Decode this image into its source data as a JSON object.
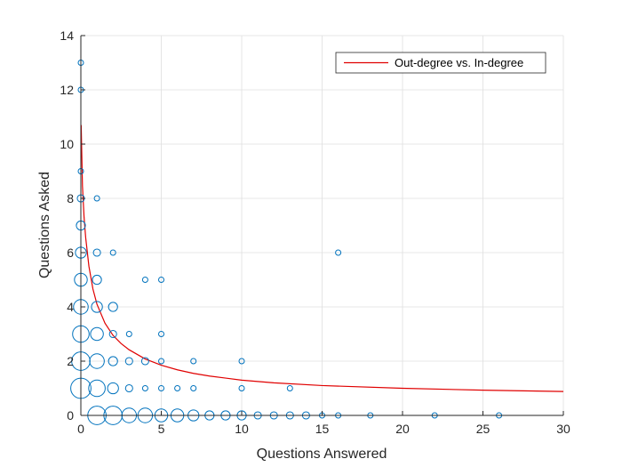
{
  "chart_data": {
    "type": "scatter",
    "title": "",
    "xlabel": "Questions Answered",
    "ylabel": "Questions Asked",
    "xlim": [
      0,
      30
    ],
    "ylim": [
      0,
      14
    ],
    "xticks": [
      0,
      5,
      10,
      15,
      20,
      25,
      30
    ],
    "yticks": [
      0,
      2,
      4,
      6,
      8,
      10,
      12,
      14
    ],
    "grid": true,
    "legend": {
      "placement": "top-right",
      "entries": [
        "Out-degree vs. In-degree"
      ]
    },
    "colors": {
      "points": "#0072BD",
      "fit": "#E00000",
      "axes": "#262626",
      "grid": "#DFDFDF"
    },
    "scatter": {
      "note_size": "relative count",
      "points": [
        {
          "x": 0,
          "y": 13,
          "size": 1
        },
        {
          "x": 0,
          "y": 12,
          "size": 1
        },
        {
          "x": 0,
          "y": 9,
          "size": 1
        },
        {
          "x": 0,
          "y": 8,
          "size": 2
        },
        {
          "x": 0,
          "y": 7,
          "size": 3
        },
        {
          "x": 0,
          "y": 6,
          "size": 4
        },
        {
          "x": 0,
          "y": 5,
          "size": 5
        },
        {
          "x": 0,
          "y": 4,
          "size": 6
        },
        {
          "x": 0,
          "y": 3,
          "size": 7
        },
        {
          "x": 0,
          "y": 2,
          "size": 8
        },
        {
          "x": 0,
          "y": 1,
          "size": 9
        },
        {
          "x": 1,
          "y": 8,
          "size": 1
        },
        {
          "x": 1,
          "y": 6,
          "size": 2
        },
        {
          "x": 1,
          "y": 5,
          "size": 3
        },
        {
          "x": 1,
          "y": 4,
          "size": 4
        },
        {
          "x": 1,
          "y": 3,
          "size": 5
        },
        {
          "x": 1,
          "y": 2,
          "size": 6
        },
        {
          "x": 1,
          "y": 1,
          "size": 7
        },
        {
          "x": 1,
          "y": 0,
          "size": 8
        },
        {
          "x": 2,
          "y": 6,
          "size": 1
        },
        {
          "x": 2,
          "y": 4,
          "size": 3
        },
        {
          "x": 2,
          "y": 3,
          "size": 2
        },
        {
          "x": 2,
          "y": 2,
          "size": 3
        },
        {
          "x": 2,
          "y": 1,
          "size": 4
        },
        {
          "x": 2,
          "y": 0,
          "size": 8
        },
        {
          "x": 3,
          "y": 3,
          "size": 1
        },
        {
          "x": 3,
          "y": 2,
          "size": 2
        },
        {
          "x": 3,
          "y": 1,
          "size": 2
        },
        {
          "x": 3,
          "y": 0,
          "size": 6
        },
        {
          "x": 4,
          "y": 5,
          "size": 1
        },
        {
          "x": 4,
          "y": 2,
          "size": 2
        },
        {
          "x": 4,
          "y": 1,
          "size": 1
        },
        {
          "x": 4,
          "y": 0,
          "size": 6
        },
        {
          "x": 5,
          "y": 5,
          "size": 1
        },
        {
          "x": 5,
          "y": 3,
          "size": 1
        },
        {
          "x": 5,
          "y": 2,
          "size": 1
        },
        {
          "x": 5,
          "y": 1,
          "size": 1
        },
        {
          "x": 5,
          "y": 0,
          "size": 5
        },
        {
          "x": 6,
          "y": 1,
          "size": 1
        },
        {
          "x": 6,
          "y": 0,
          "size": 5
        },
        {
          "x": 7,
          "y": 2,
          "size": 1
        },
        {
          "x": 7,
          "y": 1,
          "size": 1
        },
        {
          "x": 7,
          "y": 0,
          "size": 4
        },
        {
          "x": 8,
          "y": 0,
          "size": 3
        },
        {
          "x": 9,
          "y": 0,
          "size": 3
        },
        {
          "x": 10,
          "y": 2,
          "size": 1
        },
        {
          "x": 10,
          "y": 1,
          "size": 1
        },
        {
          "x": 10,
          "y": 0,
          "size": 3
        },
        {
          "x": 11,
          "y": 0,
          "size": 2
        },
        {
          "x": 12,
          "y": 0,
          "size": 2
        },
        {
          "x": 13,
          "y": 1,
          "size": 1
        },
        {
          "x": 13,
          "y": 0,
          "size": 2
        },
        {
          "x": 14,
          "y": 0,
          "size": 2
        },
        {
          "x": 15,
          "y": 0,
          "size": 1
        },
        {
          "x": 16,
          "y": 6,
          "size": 1
        },
        {
          "x": 16,
          "y": 0,
          "size": 1
        },
        {
          "x": 18,
          "y": 0,
          "size": 1
        },
        {
          "x": 22,
          "y": 0,
          "size": 1
        },
        {
          "x": 26,
          "y": 0,
          "size": 1
        }
      ]
    },
    "fit_line": {
      "name": "Out-degree vs. In-degree",
      "x": [
        0.02,
        0.1,
        0.2,
        0.3,
        0.5,
        0.75,
        1,
        1.5,
        2,
        2.5,
        3,
        4,
        5,
        6,
        7,
        8,
        10,
        12,
        15,
        20,
        25,
        30
      ],
      "y": [
        10.7,
        8.45,
        7.3,
        6.55,
        5.5,
        4.66,
        4.1,
        3.4,
        2.95,
        2.65,
        2.42,
        2.08,
        1.85,
        1.68,
        1.55,
        1.45,
        1.3,
        1.2,
        1.1,
        1.0,
        0.93,
        0.88
      ]
    }
  }
}
